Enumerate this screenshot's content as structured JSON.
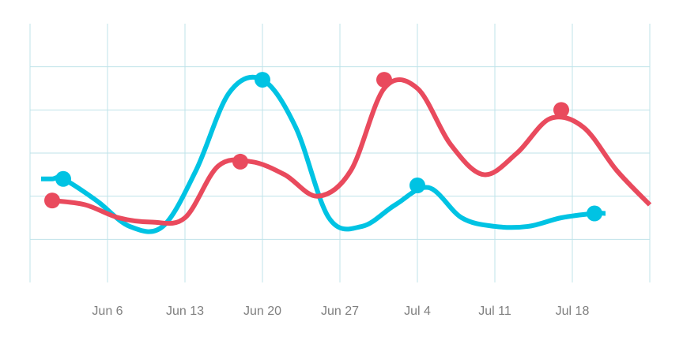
{
  "chart_data": {
    "type": "line",
    "title": "",
    "xlabel": "",
    "ylabel": "",
    "x_tick_labels": [
      "Jun 6",
      "Jun 13",
      "Jun 20",
      "Jun 27",
      "Jul 4",
      "Jul 11",
      "Jul 18"
    ],
    "x_tick_dates": [
      "2015-06-06",
      "2015-06-13",
      "2015-06-20",
      "2015-06-27",
      "2015-07-04",
      "2015-07-11",
      "2015-07-18"
    ],
    "xlim": [
      "2015-05-30",
      "2015-07-25"
    ],
    "ylim": [
      0,
      6
    ],
    "grid": true,
    "legend": "none",
    "series": [
      {
        "color": "#00c3e3",
        "x": [
          "2015-05-31",
          "2015-06-01",
          "2015-06-02",
          "2015-06-05",
          "2015-06-08",
          "2015-06-11",
          "2015-06-14",
          "2015-06-17",
          "2015-06-20",
          "2015-06-23",
          "2015-06-26",
          "2015-06-29",
          "2015-07-02",
          "2015-07-05",
          "2015-07-08",
          "2015-07-11",
          "2015-07-14",
          "2015-07-17",
          "2015-07-20",
          "2015-07-21"
        ],
        "y": [
          2.4,
          2.4,
          2.4,
          1.9,
          1.3,
          1.3,
          2.6,
          4.4,
          4.7,
          3.6,
          1.5,
          1.3,
          1.8,
          2.2,
          1.5,
          1.3,
          1.3,
          1.5,
          1.6,
          1.6
        ],
        "markers": [
          {
            "x": "2015-06-02",
            "y": 2.4
          },
          {
            "x": "2015-06-20",
            "y": 4.7
          },
          {
            "x": "2015-07-04",
            "y": 2.25
          },
          {
            "x": "2015-07-20",
            "y": 1.6
          }
        ]
      },
      {
        "color": "#e94a5d",
        "x": [
          "2015-06-01",
          "2015-06-04",
          "2015-06-07",
          "2015-06-10",
          "2015-06-13",
          "2015-06-16",
          "2015-06-19",
          "2015-06-22",
          "2015-06-25",
          "2015-06-28",
          "2015-07-01",
          "2015-07-04",
          "2015-07-07",
          "2015-07-10",
          "2015-07-13",
          "2015-07-16",
          "2015-07-19",
          "2015-07-22",
          "2015-07-25"
        ],
        "y": [
          1.9,
          1.8,
          1.5,
          1.4,
          1.5,
          2.7,
          2.8,
          2.5,
          2.0,
          2.6,
          4.5,
          4.5,
          3.2,
          2.5,
          3.0,
          3.8,
          3.6,
          2.6,
          1.8
        ],
        "markers": [
          {
            "x": "2015-06-01",
            "y": 1.9
          },
          {
            "x": "2015-06-18",
            "y": 2.8
          },
          {
            "x": "2015-07-01",
            "y": 4.7
          },
          {
            "x": "2015-07-17",
            "y": 4.0
          }
        ]
      }
    ]
  }
}
